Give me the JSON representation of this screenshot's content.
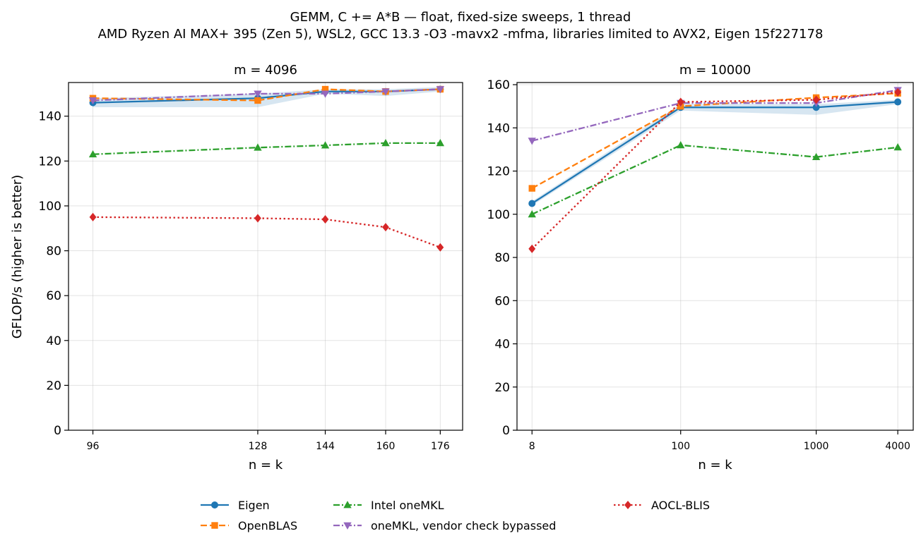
{
  "suptitle": "GEMM, C += A*B — float, fixed-size sweeps, 1 thread",
  "subtitle": "AMD Ryzen AI MAX+ 395 (Zen 5), WSL2, GCC 13.3 -O3 -mavx2 -mfma, libraries limited to AVX2, Eigen 15f227178",
  "ylabel": "GFLOP/s (higher is better)",
  "legend": [
    {
      "name": "Eigen",
      "color": "#1f77b4",
      "marker": "circle",
      "dash": "solid"
    },
    {
      "name": "OpenBLAS",
      "color": "#ff7f0e",
      "marker": "square",
      "dash": "dashed"
    },
    {
      "name": "Intel oneMKL",
      "color": "#2ca02c",
      "marker": "triangle-up",
      "dash": "dashdot"
    },
    {
      "name": "oneMKL, vendor check bypassed",
      "color": "#9467bd",
      "marker": "triangle-down",
      "dash": "dashdot"
    },
    {
      "name": "AOCL-BLIS",
      "color": "#d62728",
      "marker": "diamond",
      "dash": "dotted"
    }
  ],
  "chart_data": [
    {
      "type": "line",
      "title": "m = 4096",
      "xlabel": "n = k",
      "ylabel": "GFLOP/s (higher is better)",
      "x_scale": "log",
      "x": [
        96,
        128,
        144,
        160,
        176
      ],
      "xticks": [
        "96",
        "128",
        "144",
        "160",
        "176"
      ],
      "xlim": [
        92,
        183
      ],
      "ylim": [
        0,
        155
      ],
      "yticks": [
        0,
        20,
        40,
        60,
        80,
        100,
        120,
        140
      ],
      "grid": true,
      "series": [
        {
          "name": "Eigen",
          "values": [
            146,
            148,
            151,
            151,
            152
          ],
          "band": [
            [
              144,
              148
            ],
            [
              144,
              150
            ],
            [
              150,
              152
            ],
            [
              149,
              152
            ],
            [
              151,
              153
            ]
          ]
        },
        {
          "name": "OpenBLAS",
          "values": [
            148,
            147,
            152,
            151,
            152
          ]
        },
        {
          "name": "Intel oneMKL",
          "values": [
            123,
            126,
            127,
            128,
            128
          ]
        },
        {
          "name": "oneMKL, vendor check bypassed",
          "values": [
            147,
            150,
            150,
            151,
            152
          ]
        },
        {
          "name": "AOCL-BLIS",
          "values": [
            95,
            94.5,
            94,
            90.5,
            81.5
          ]
        }
      ]
    },
    {
      "type": "line",
      "title": "m = 10000",
      "xlabel": "n = k",
      "x_scale": "log",
      "x": [
        8,
        100,
        1000,
        4000
      ],
      "xticks": [
        "8",
        "100",
        "1000",
        "4000"
      ],
      "xlim": [
        6.2,
        5200
      ],
      "ylim": [
        0,
        161
      ],
      "yticks": [
        0,
        20,
        40,
        60,
        80,
        100,
        120,
        140,
        160
      ],
      "grid": true,
      "series": [
        {
          "name": "Eigen",
          "values": [
            105,
            149.5,
            149.5,
            152
          ],
          "band": [
            [
              104,
              106
            ],
            [
              148,
              151
            ],
            [
              146,
              151
            ],
            [
              151,
              153
            ]
          ]
        },
        {
          "name": "OpenBLAS",
          "values": [
            112,
            150,
            154,
            156
          ]
        },
        {
          "name": "Intel oneMKL",
          "values": [
            100,
            132,
            126.5,
            131
          ]
        },
        {
          "name": "oneMKL, vendor check bypassed",
          "values": [
            134,
            151.5,
            151.5,
            157.5
          ]
        },
        {
          "name": "AOCL-BLIS",
          "values": [
            84,
            152,
            153,
            156.5
          ]
        }
      ]
    }
  ]
}
